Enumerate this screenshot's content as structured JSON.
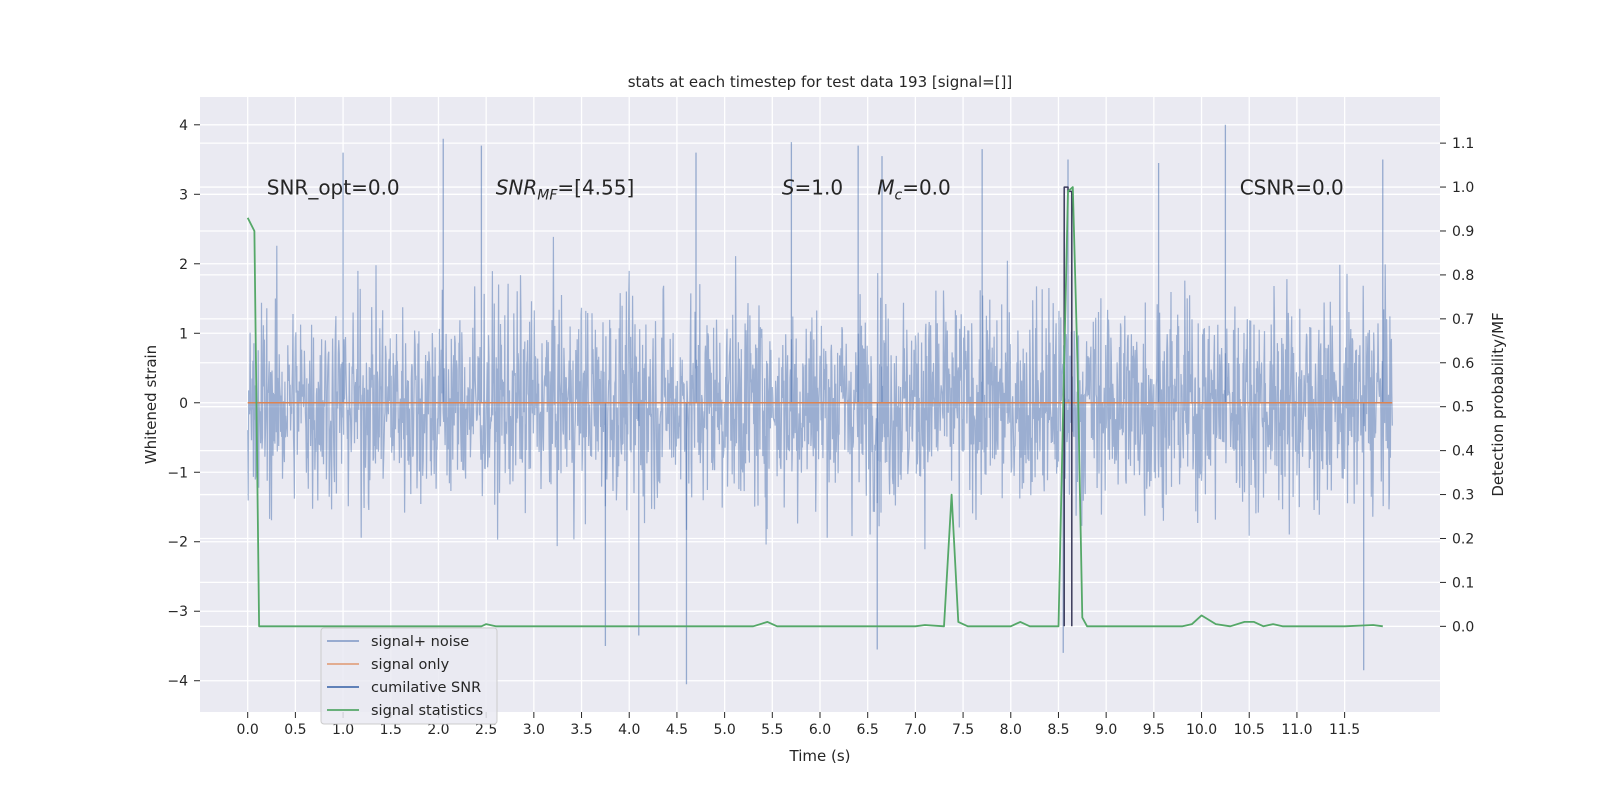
{
  "chart_data": {
    "type": "line",
    "title": "stats at each timestep for test data 193 [signal=[]]",
    "xlabel": "Time (s)",
    "ylabel": "Whitened strain",
    "ylabel_right": "Detection probability/MF",
    "xlim": [
      -0.5,
      12.5
    ],
    "ylim": [
      -4.45,
      4.4
    ],
    "ylim_right": [
      -0.195,
      1.205
    ],
    "x_ticks": [
      0.0,
      0.5,
      1.0,
      1.5,
      2.0,
      2.5,
      3.0,
      3.5,
      4.0,
      4.5,
      5.0,
      5.5,
      6.0,
      6.5,
      7.0,
      7.5,
      8.0,
      8.5,
      9.0,
      9.5,
      10.0,
      10.5,
      11.0,
      11.5
    ],
    "x_tick_labels": [
      "0.0",
      "0.5",
      "1.0",
      "1.5",
      "2.0",
      "2.5",
      "3.0",
      "3.5",
      "4.0",
      "4.5",
      "5.0",
      "5.5",
      "6.0",
      "6.5",
      "7.0",
      "7.5",
      "8.0",
      "8.5",
      "9.0",
      "9.5",
      "10.0",
      "10.5",
      "11.0",
      "11.5"
    ],
    "y_ticks": [
      -4,
      -3,
      -2,
      -1,
      0,
      1,
      2,
      3,
      4
    ],
    "y_tick_labels": [
      "−4",
      "−3",
      "−2",
      "−1",
      "0",
      "1",
      "2",
      "3",
      "4"
    ],
    "y_ticks_right": [
      0.0,
      0.1,
      0.2,
      0.3,
      0.4,
      0.5,
      0.6,
      0.7,
      0.8,
      0.9,
      1.0,
      1.1
    ],
    "y_tick_labels_right": [
      "0.0",
      "0.1",
      "0.2",
      "0.3",
      "0.4",
      "0.5",
      "0.6",
      "0.7",
      "0.8",
      "0.9",
      "1.0",
      "1.1"
    ],
    "grid": true,
    "legend_position": "lower-left",
    "colors": {
      "background": "#eaeaf2",
      "grid": "#ffffff",
      "noise": "#4c72b0",
      "signal_only": "#dd8452",
      "cumulative_snr": "#4c72b0",
      "statistics": "#55a868"
    },
    "series": [
      {
        "name": "signal+ noise",
        "axis": "left",
        "kind": "noise-band",
        "x_range": [
          0.0,
          12.0
        ],
        "envelope_typical": 2.6,
        "envelope_max": 4.0,
        "spikes": [
          {
            "x": 1.0,
            "y": 3.6
          },
          {
            "x": 2.05,
            "y": 3.8
          },
          {
            "x": 2.45,
            "y": 3.7
          },
          {
            "x": 4.7,
            "y": 3.6
          },
          {
            "x": 5.7,
            "y": 3.75
          },
          {
            "x": 6.4,
            "y": 3.7
          },
          {
            "x": 6.65,
            "y": 3.55
          },
          {
            "x": 7.7,
            "y": 3.65
          },
          {
            "x": 8.6,
            "y": 3.5
          },
          {
            "x": 9.55,
            "y": 3.45
          },
          {
            "x": 10.25,
            "y": 4.0
          },
          {
            "x": 11.9,
            "y": 3.5
          },
          {
            "x": 3.75,
            "y": -3.5
          },
          {
            "x": 4.6,
            "y": -4.05
          },
          {
            "x": 6.6,
            "y": -3.55
          },
          {
            "x": 8.55,
            "y": -3.6
          },
          {
            "x": 11.7,
            "y": -3.85
          },
          {
            "x": 4.1,
            "y": -3.35
          }
        ]
      },
      {
        "name": "signal only",
        "axis": "left",
        "x": [
          0.0,
          12.0
        ],
        "y": [
          0.0,
          0.0
        ]
      },
      {
        "name": "cumilative SNR",
        "axis": "right",
        "x": [
          8.56,
          8.56,
          8.6,
          8.6,
          8.64,
          8.64
        ],
        "y": [
          0.0,
          1.0,
          1.0,
          0.99,
          0.99,
          0.0
        ]
      },
      {
        "name": "signal statistics",
        "axis": "right",
        "x": [
          0.0,
          0.07,
          0.12,
          0.15,
          0.3,
          1.0,
          2.0,
          2.45,
          2.5,
          2.6,
          3.0,
          4.0,
          5.0,
          5.3,
          5.45,
          5.55,
          6.0,
          7.0,
          7.1,
          7.3,
          7.38,
          7.45,
          7.55,
          8.0,
          8.1,
          8.2,
          8.5,
          8.55,
          8.6,
          8.65,
          8.7,
          8.75,
          8.8,
          9.0,
          9.5,
          9.8,
          9.9,
          10.0,
          10.15,
          10.3,
          10.45,
          10.55,
          10.65,
          10.75,
          10.85,
          11.0,
          11.5,
          11.8,
          11.9
        ],
        "y": [
          0.93,
          0.9,
          0.0,
          0.0,
          0.0,
          0.0,
          0.0,
          0.0,
          0.005,
          0.0,
          0.0,
          0.0,
          0.0,
          0.0,
          0.01,
          0.0,
          0.0,
          0.0,
          0.003,
          0.0,
          0.3,
          0.01,
          0.0,
          0.0,
          0.01,
          0.0,
          0.0,
          0.5,
          0.99,
          1.0,
          0.6,
          0.02,
          0.0,
          0.0,
          0.0,
          0.0,
          0.005,
          0.025,
          0.005,
          0.0,
          0.01,
          0.01,
          0.0,
          0.005,
          0.0,
          0.0,
          0.0,
          0.003,
          0.0
        ]
      }
    ],
    "annotations": [
      {
        "text": "SNR_opt=0.0",
        "x": 0.2,
        "y": 3.1
      },
      {
        "text": "SNR",
        "sub": "MF",
        "suffix": "=[4.55]",
        "italic": true,
        "x": 2.6,
        "y": 3.1
      },
      {
        "text": "S",
        "suffix": "=1.0",
        "italic": true,
        "x": 5.6,
        "y": 3.1
      },
      {
        "text": "M",
        "sub": "c",
        "suffix": "=0.0",
        "italic": true,
        "x": 6.6,
        "y": 3.1
      },
      {
        "text": "CSNR=0.0",
        "x": 10.4,
        "y": 3.1
      }
    ]
  }
}
